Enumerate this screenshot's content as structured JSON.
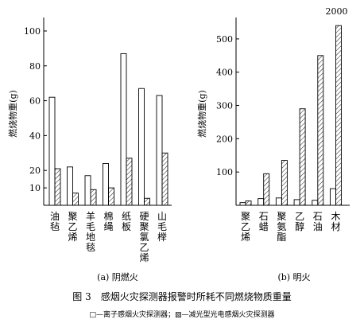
{
  "figure": {
    "caption": "图 3　感烟火灾探测器报警时所耗不同燃烧物质重量",
    "legend_text": "□—离子感烟火灾探测器；▨—减光型光电感烟火灾探测器"
  },
  "chart_data": [
    {
      "type": "bar",
      "subtitle": "(a) 阴燃火",
      "ylabel": "燃烧物重(g)",
      "ylim": [
        0,
        105
      ],
      "yticks": [
        "10",
        "20",
        "40",
        "60",
        "80",
        "100"
      ],
      "categories": [
        "油毡",
        "聚乙烯",
        "羊毛地毯",
        "棉绳",
        "纸板",
        "硬聚氯乙烯",
        "山毛榉"
      ],
      "series": [
        {
          "name": "离子感烟火灾探测器",
          "pattern": "open",
          "values": [
            62,
            22,
            17,
            24,
            87,
            67,
            63
          ]
        },
        {
          "name": "减光型光电感烟火灾探测器",
          "pattern": "hatched",
          "values": [
            21,
            7,
            9,
            10,
            27,
            4,
            30
          ]
        }
      ]
    },
    {
      "type": "bar",
      "subtitle": "(b) 明火",
      "ylabel": "燃烧物重(g)",
      "ylim": [
        0,
        550
      ],
      "yticks": [
        "100",
        "200",
        "300",
        "400",
        "500"
      ],
      "categories": [
        "聚乙烯",
        "石蜡",
        "聚氨酯",
        "乙醇",
        "石油",
        "木材"
      ],
      "annotations": [
        "2000"
      ],
      "series": [
        {
          "name": "离子感烟火灾探测器",
          "pattern": "open",
          "values": [
            8,
            20,
            22,
            17,
            15,
            50
          ]
        },
        {
          "name": "减光型光电感烟火灾探测器",
          "pattern": "hatched",
          "values": [
            13,
            95,
            135,
            290,
            450,
            540
          ]
        }
      ]
    }
  ]
}
